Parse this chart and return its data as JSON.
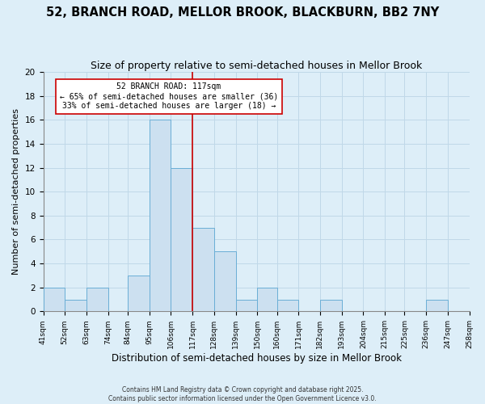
{
  "title": "52, BRANCH ROAD, MELLOR BROOK, BLACKBURN, BB2 7NY",
  "subtitle": "Size of property relative to semi-detached houses in Mellor Brook",
  "xlabel": "Distribution of semi-detached houses by size in Mellor Brook",
  "ylabel": "Number of semi-detached properties",
  "bin_edges": [
    41,
    52,
    63,
    74,
    84,
    95,
    106,
    117,
    128,
    139,
    150,
    160,
    171,
    182,
    193,
    204,
    215,
    225,
    236,
    247,
    258
  ],
  "bar_heights": [
    2,
    1,
    2,
    0,
    3,
    16,
    12,
    7,
    5,
    1,
    2,
    1,
    0,
    1,
    0,
    0,
    0,
    0,
    1,
    0
  ],
  "bar_color": "#cce0f0",
  "bar_edge_color": "#6aaed6",
  "vline_x": 117,
  "vline_color": "#cc0000",
  "annotation_title": "52 BRANCH ROAD: 117sqm",
  "annotation_line1": "← 65% of semi-detached houses are smaller (36)",
  "annotation_line2": "33% of semi-detached houses are larger (18) →",
  "ylim": [
    0,
    20
  ],
  "yticks": [
    0,
    2,
    4,
    6,
    8,
    10,
    12,
    14,
    16,
    18,
    20
  ],
  "background_color": "#ddeef8",
  "grid_color": "#c0d8e8",
  "footer1": "Contains HM Land Registry data © Crown copyright and database right 2025.",
  "footer2": "Contains public sector information licensed under the Open Government Licence v3.0.",
  "title_fontsize": 10.5,
  "subtitle_fontsize": 9,
  "xlabel_fontsize": 8.5,
  "ylabel_fontsize": 8,
  "tick_fontsize": 6.5,
  "tick_labels": [
    "41sqm",
    "52sqm",
    "63sqm",
    "74sqm",
    "84sqm",
    "95sqm",
    "106sqm",
    "117sqm",
    "128sqm",
    "139sqm",
    "150sqm",
    "160sqm",
    "171sqm",
    "182sqm",
    "193sqm",
    "204sqm",
    "215sqm",
    "225sqm",
    "236sqm",
    "247sqm",
    "258sqm"
  ]
}
